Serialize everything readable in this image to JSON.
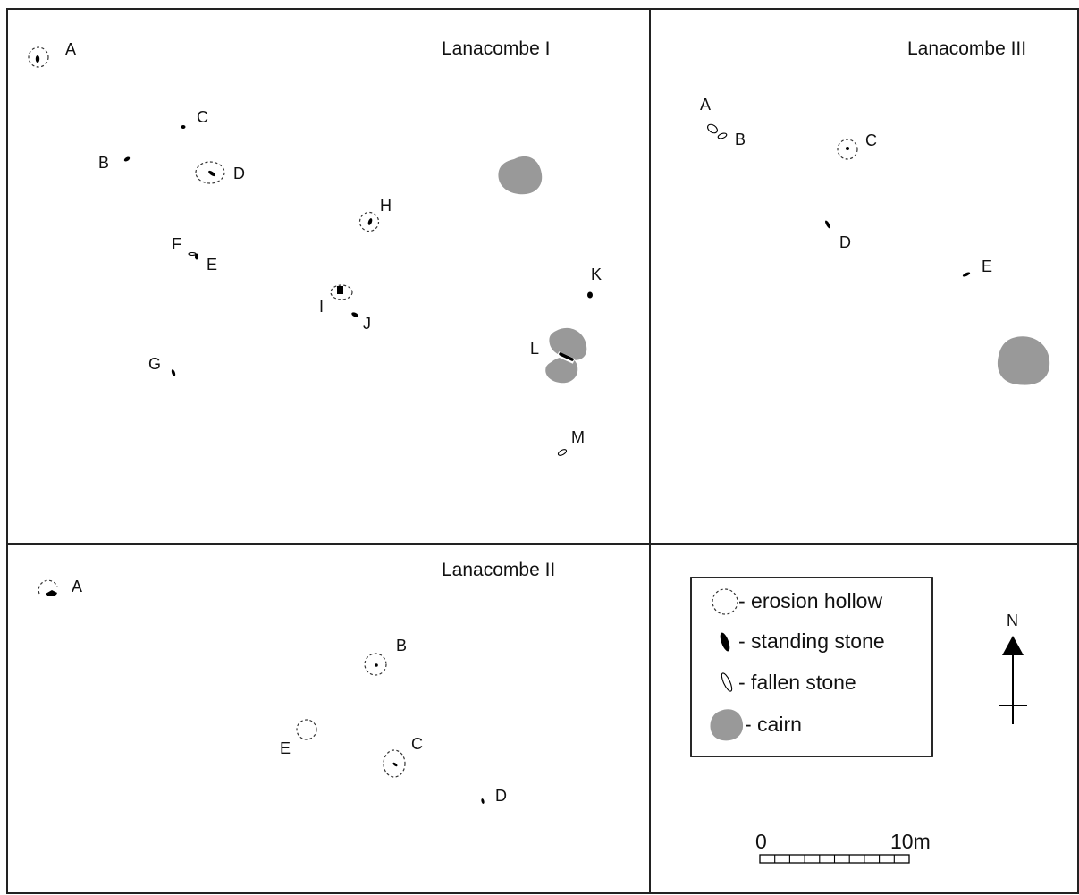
{
  "colors": {
    "cairn": "#999999",
    "ink": "#000000",
    "paper": "#ffffff"
  },
  "panels": {
    "lanacombe_1": {
      "title": "Lanacombe I",
      "labels": [
        "A",
        "B",
        "C",
        "D",
        "E",
        "F",
        "G",
        "H",
        "I",
        "J",
        "K",
        "L",
        "M"
      ]
    },
    "lanacombe_2": {
      "title": "Lanacombe II",
      "labels": [
        "A",
        "B",
        "C",
        "D",
        "E"
      ]
    },
    "lanacombe_3": {
      "title": "Lanacombe III",
      "labels": [
        "A",
        "B",
        "C",
        "D",
        "E"
      ]
    }
  },
  "legend": {
    "items": [
      {
        "icon": "erosion-hollow-icon",
        "text": "- erosion hollow"
      },
      {
        "icon": "standing-stone-icon",
        "text": "- standing stone"
      },
      {
        "icon": "fallen-stone-icon",
        "text": "- fallen stone"
      },
      {
        "icon": "cairn-icon",
        "text": "- cairn"
      }
    ]
  },
  "north_arrow": {
    "icon": "north-arrow-icon",
    "label": "N"
  },
  "scale_bar": {
    "start_label": "0",
    "end_label": "10m",
    "length_m": 10,
    "divisions": 10
  }
}
